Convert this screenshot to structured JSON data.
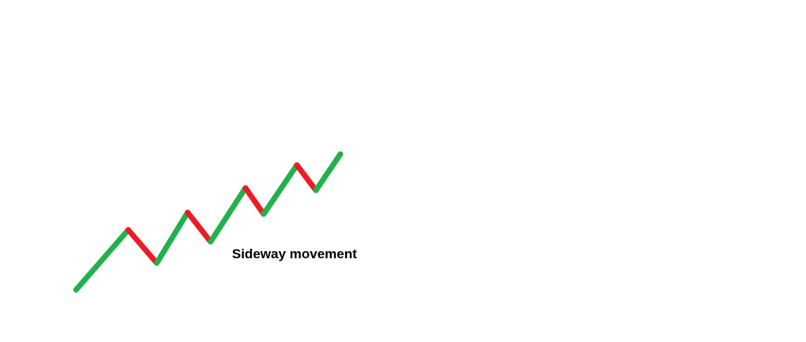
{
  "annotation": {
    "text": "Sideway movement"
  },
  "colors": {
    "up": "#22b14c",
    "down": "#ed1c24",
    "text": "#000000",
    "background": "#ffffff"
  },
  "segments": [
    {
      "direction": "up"
    },
    {
      "direction": "down"
    },
    {
      "direction": "up"
    },
    {
      "direction": "down"
    },
    {
      "direction": "up"
    },
    {
      "direction": "down"
    },
    {
      "direction": "up"
    },
    {
      "direction": "down"
    },
    {
      "direction": "up"
    }
  ]
}
